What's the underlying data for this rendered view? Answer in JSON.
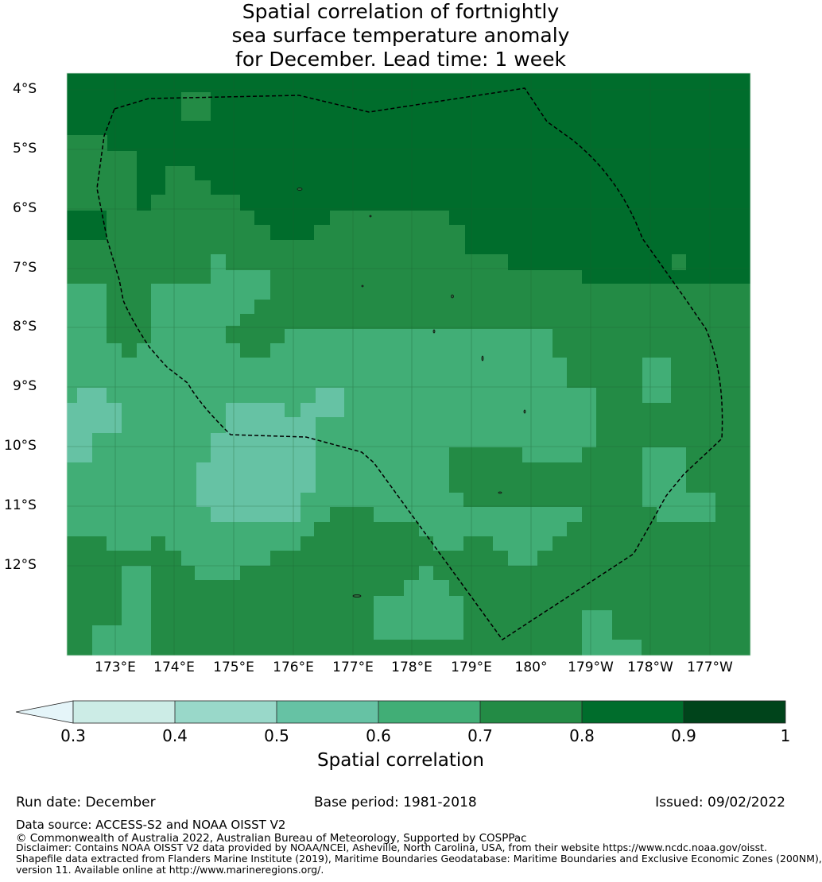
{
  "title": {
    "line1": "Spatial correlation of fortnightly",
    "line2": "sea surface temperature anomaly",
    "line3": "for December. Lead time: 1 week"
  },
  "map": {
    "lat_labels": [
      "4°S",
      "5°S",
      "6°S",
      "7°S",
      "8°S",
      "9°S",
      "10°S",
      "11°S",
      "12°S"
    ],
    "lon_labels": [
      "173°E",
      "174°E",
      "175°E",
      "176°E",
      "177°E",
      "178°E",
      "179°E",
      "180°",
      "179°W",
      "178°W",
      "177°W"
    ],
    "lon_range": [
      172.2,
      183.7
    ],
    "lat_range": [
      -13.5,
      -3.7
    ]
  },
  "colorbar": {
    "label": "Spatial correlation",
    "ticks": [
      "0.3",
      "0.4",
      "0.5",
      "0.6",
      "0.7",
      "0.8",
      "0.9",
      "1"
    ],
    "colors": [
      "#e5f5f9",
      "#ccece6",
      "#99d8c9",
      "#66c2a4",
      "#41ae76",
      "#238b45",
      "#006d2c",
      "#00441b"
    ]
  },
  "footer": {
    "run_date": "Run date: December",
    "base_period": "Base period: 1981-2018",
    "issued": "Issued: 09/02/2022",
    "data_source": "Data source: ACCESS-S2 and NOAA OISST V2",
    "copyright": "© Commonwealth of Australia 2022, Australian Bureau of Meteorology, Supported by COSPPac",
    "disclaimer1": "Disclaimer: Contains NOAA OISST V2 data provided by NOAA/NCEI, Asheville, North Carolina, USA, from their website https://www.ncdc.noaa.gov/oisst.",
    "disclaimer2": "Shapefile data extracted from Flanders Marine Institute (2019), Maritime Boundaries Geodatabase: Maritime Boundaries and Exclusive Economic Zones (200NM),",
    "disclaimer3": "version 11. Available online at http://www.marineregions.org/."
  }
}
